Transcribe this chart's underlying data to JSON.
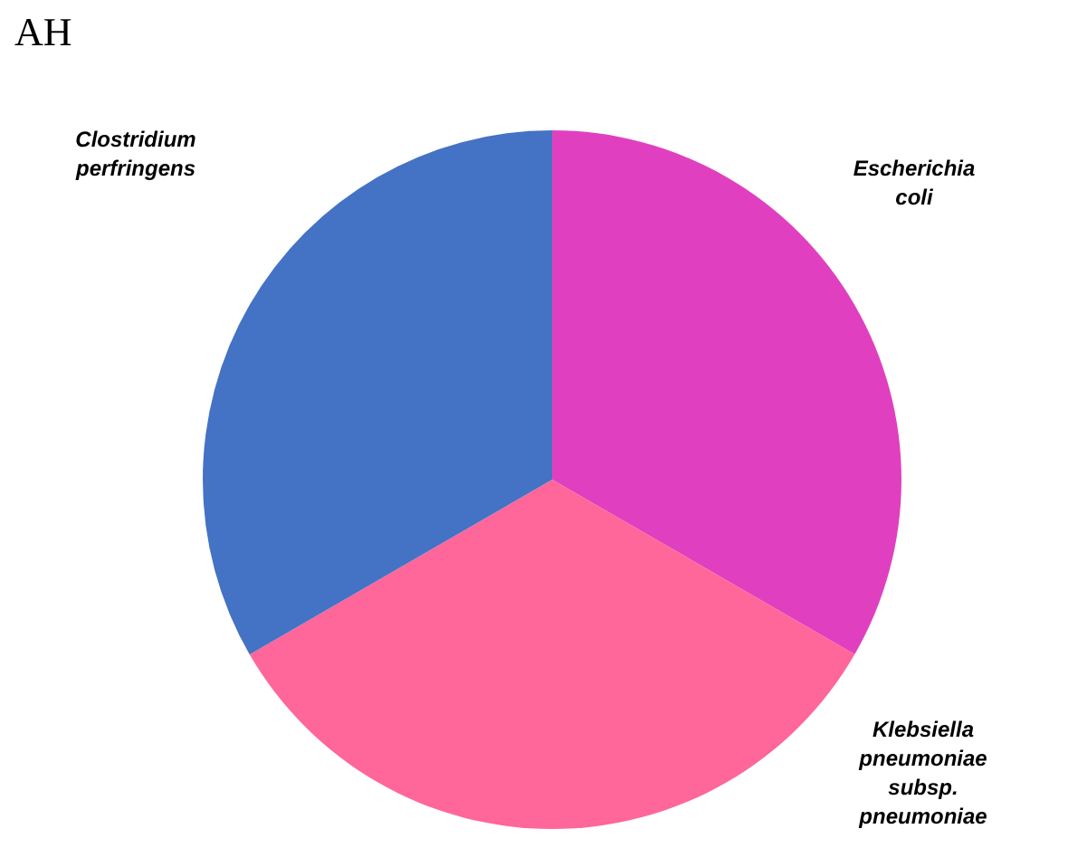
{
  "chart_data": {
    "type": "pie",
    "title": "AH",
    "categories": [
      "Escherichia coli",
      "Klebsiella pneumoniae subsp. pneumoniae",
      "Clostridium perfringens"
    ],
    "values": [
      33.33,
      33.33,
      33.34
    ],
    "colors": [
      "#e040c0",
      "#ff6699",
      "#4472c4"
    ],
    "legend": false
  }
}
